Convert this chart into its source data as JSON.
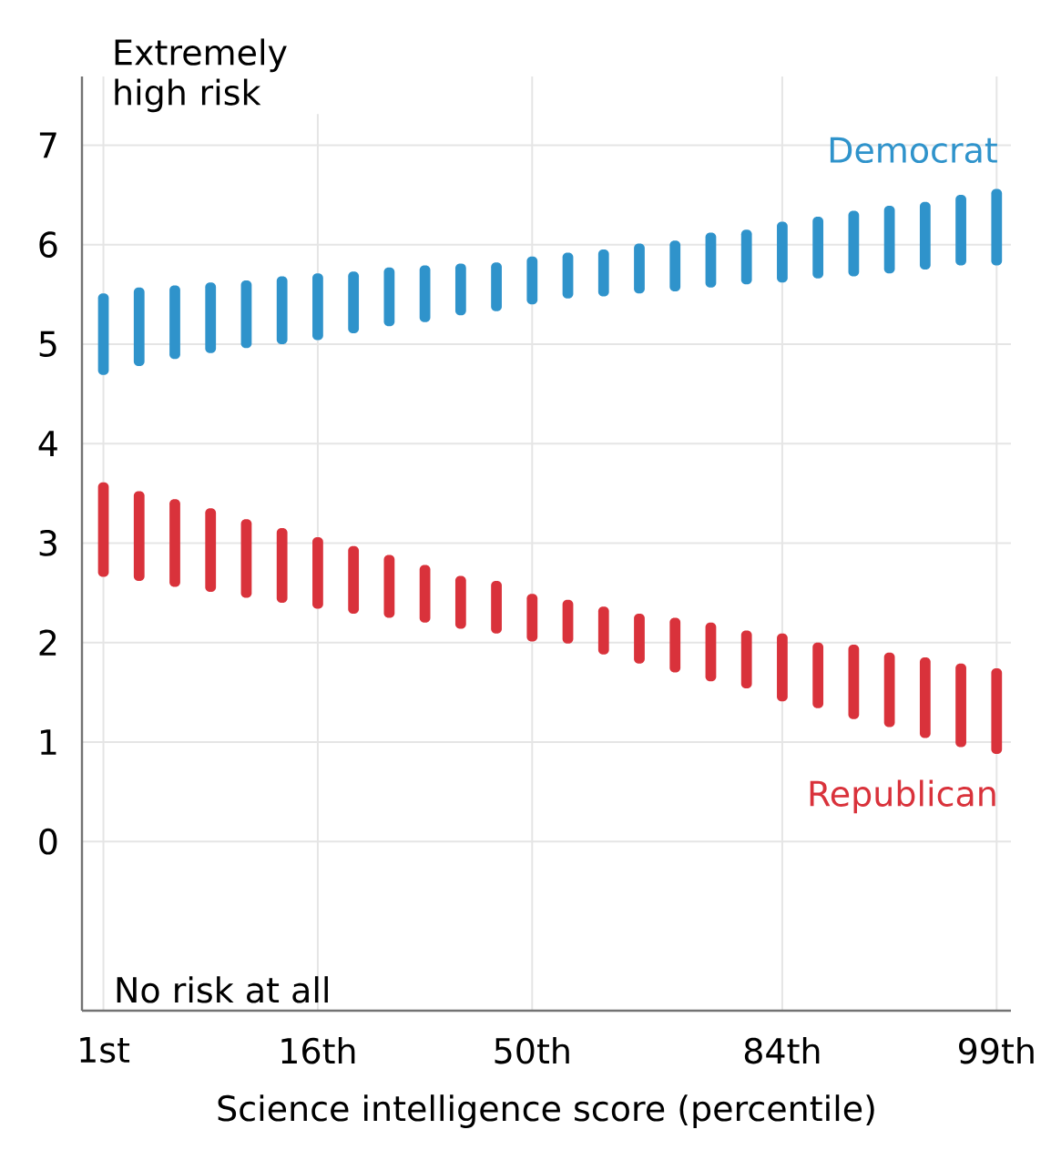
{
  "chart_data": {
    "type": "bar",
    "xlabel": "Science intelligence score (percentile)",
    "categories": [
      "1st",
      null,
      null,
      null,
      null,
      null,
      "16th",
      null,
      null,
      null,
      null,
      null,
      "50th",
      null,
      null,
      null,
      null,
      null,
      null,
      "84th",
      null,
      null,
      null,
      null,
      null,
      "99th"
    ],
    "series": [
      {
        "name": "Democrat",
        "color": "#2f93cb",
        "base": [
          4.69,
          4.78,
          4.85,
          4.91,
          4.96,
          5.0,
          5.04,
          5.11,
          5.18,
          5.22,
          5.29,
          5.33,
          5.4,
          5.46,
          5.48,
          5.51,
          5.53,
          5.57,
          5.6,
          5.62,
          5.66,
          5.68,
          5.71,
          5.75,
          5.79,
          5.79
        ],
        "values": [
          0.82,
          0.79,
          0.74,
          0.71,
          0.68,
          0.68,
          0.67,
          0.62,
          0.59,
          0.57,
          0.52,
          0.49,
          0.48,
          0.46,
          0.47,
          0.5,
          0.51,
          0.55,
          0.55,
          0.61,
          0.62,
          0.66,
          0.68,
          0.68,
          0.71,
          0.77
        ]
      },
      {
        "name": "Republican",
        "color": "#d9323b",
        "base": [
          2.66,
          2.62,
          2.56,
          2.51,
          2.45,
          2.4,
          2.34,
          2.29,
          2.25,
          2.2,
          2.14,
          2.09,
          2.01,
          1.99,
          1.88,
          1.79,
          1.7,
          1.61,
          1.54,
          1.41,
          1.34,
          1.23,
          1.15,
          1.04,
          0.95,
          0.88
        ],
        "values": [
          0.95,
          0.9,
          0.88,
          0.84,
          0.79,
          0.75,
          0.72,
          0.68,
          0.63,
          0.58,
          0.53,
          0.53,
          0.48,
          0.44,
          0.48,
          0.5,
          0.55,
          0.59,
          0.58,
          0.68,
          0.66,
          0.75,
          0.75,
          0.81,
          0.84,
          0.86
        ]
      }
    ],
    "ylim": [
      -1.7,
      7.69
    ],
    "yticks": [
      0,
      1,
      2,
      3,
      4,
      5,
      6,
      7
    ],
    "grid": true,
    "annotations": [
      "Extremely high risk",
      "No risk at all"
    ]
  }
}
